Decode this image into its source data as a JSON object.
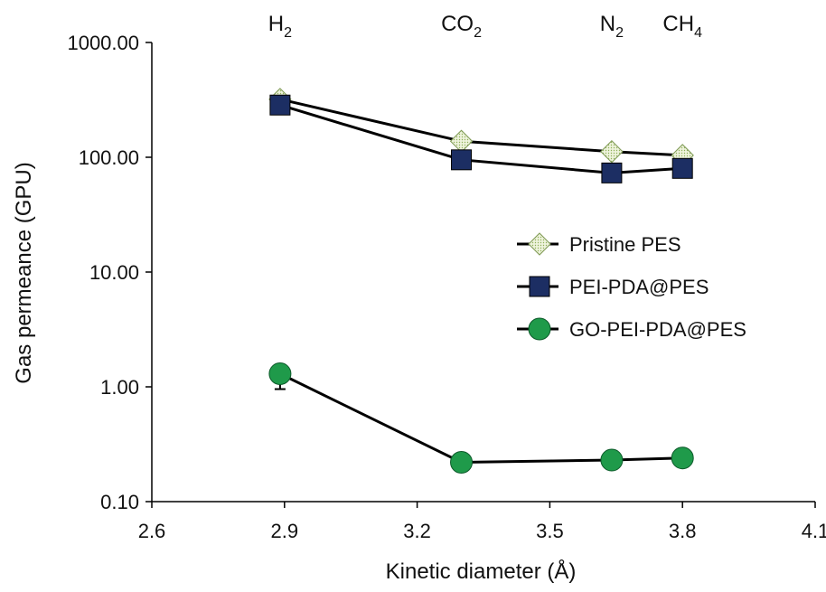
{
  "chart_data": {
    "type": "line",
    "title": "",
    "xlabel": "Kinetic diameter (Å)",
    "ylabel": "Gas permeance (GPU)",
    "xlim": [
      2.6,
      4.1
    ],
    "x_ticks": [
      "2.6",
      "2.9",
      "3.2",
      "3.5",
      "3.8",
      "4.1"
    ],
    "y_scale": "log",
    "ylim": [
      0.1,
      1000
    ],
    "y_ticks": [
      "1000.00",
      "100.00",
      "10.00",
      "1.00",
      "0.10"
    ],
    "gas_labels": [
      {
        "base": "H",
        "sub": "2",
        "x": 2.89
      },
      {
        "base": "CO",
        "sub": "2",
        "x": 3.3
      },
      {
        "base": "N",
        "sub": "2",
        "x": 3.64
      },
      {
        "base": "CH",
        "sub": "4",
        "x": 3.8
      }
    ],
    "x": [
      2.89,
      3.3,
      3.64,
      3.8
    ],
    "legend_position": "right",
    "grid": false,
    "series": [
      {
        "name": "Pristine PES",
        "marker": "diamond",
        "color": "#e6eed0",
        "values": [
          320,
          138,
          112,
          104
        ]
      },
      {
        "name": "PEI-PDA@PES",
        "marker": "square",
        "color": "#1c2e63",
        "values": [
          285,
          95,
          73,
          80
        ]
      },
      {
        "name": "GO-PEI-PDA@PES",
        "marker": "circle",
        "color": "#1f9a4a",
        "values": [
          1.3,
          0.22,
          0.23,
          0.24
        ]
      }
    ]
  }
}
